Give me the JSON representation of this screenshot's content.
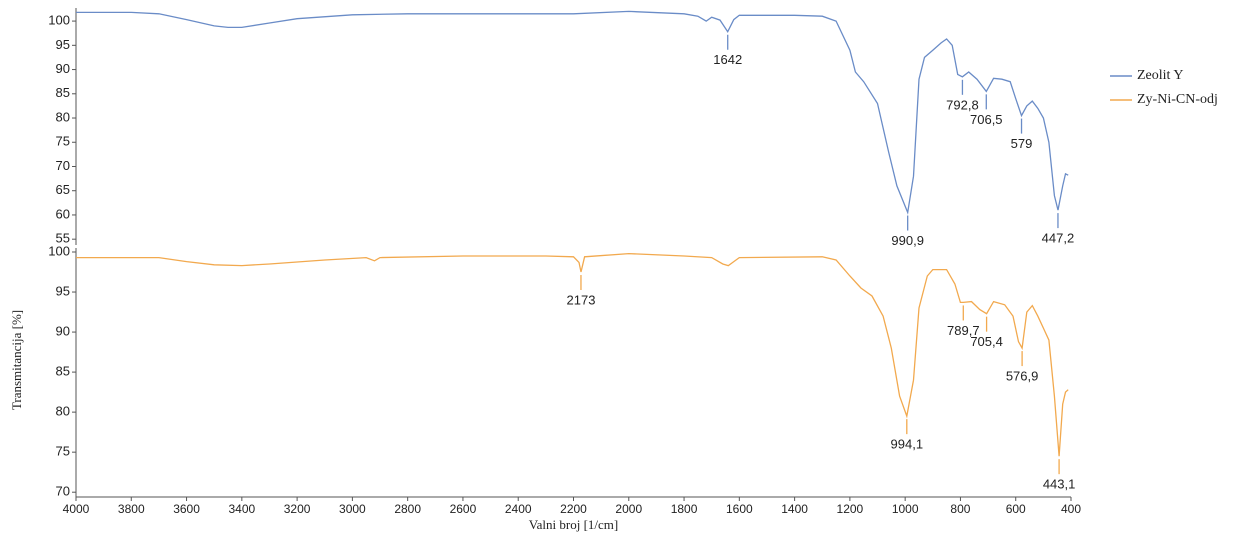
{
  "chart_data": [
    {
      "type": "line",
      "x": [
        4000,
        3800,
        3700,
        3600,
        3500,
        3450,
        3400,
        3300,
        3200,
        3000,
        2800,
        2400,
        2200,
        2000,
        1800,
        1750,
        1720,
        1700,
        1670,
        1642,
        1620,
        1600,
        1400,
        1300,
        1250,
        1200,
        1180,
        1150,
        1100,
        1060,
        1030,
        990.9,
        970,
        950,
        930,
        900,
        870,
        850,
        830,
        810,
        792.8,
        770,
        740,
        706.5,
        680,
        650,
        620,
        600,
        579,
        560,
        540,
        520,
        500,
        480,
        460,
        447.2,
        430,
        420,
        410
      ],
      "series": [
        {
          "name": "Zeolit Y",
          "color": "#6a8cc7",
          "values": [
            101.8,
            101.8,
            101.5,
            100.3,
            99.0,
            98.7,
            98.7,
            99.6,
            100.5,
            101.3,
            101.5,
            101.5,
            101.5,
            102.0,
            101.5,
            101.0,
            100.0,
            100.8,
            100.2,
            97.8,
            100.3,
            101.2,
            101.2,
            101.0,
            100.0,
            94.0,
            89.5,
            87.5,
            83.0,
            73.0,
            66.0,
            60.5,
            68.0,
            88.0,
            92.5,
            94.0,
            95.5,
            96.3,
            95.0,
            89.0,
            88.5,
            89.5,
            88.0,
            85.5,
            88.2,
            88.0,
            87.5,
            84.0,
            80.5,
            82.5,
            83.5,
            82.0,
            80.0,
            75.0,
            64.0,
            61.0,
            66.0,
            68.5,
            68.2
          ]
        }
      ],
      "xlim": [
        4000,
        400
      ],
      "ylim": [
        53.8,
        102.7
      ],
      "yticks": [
        55,
        60,
        65,
        70,
        75,
        80,
        85,
        90,
        95,
        100
      ],
      "annotations": [
        {
          "x": 1642,
          "y": 97.8,
          "text": "1642"
        },
        {
          "x": 990.9,
          "y": 60.5,
          "text": "990,9"
        },
        {
          "x": 792.8,
          "y": 88.5,
          "text": "792,8"
        },
        {
          "x": 706.5,
          "y": 85.5,
          "text": "706,5"
        },
        {
          "x": 579,
          "y": 80.5,
          "text": "579"
        },
        {
          "x": 447.2,
          "y": 61.0,
          "text": "447,2"
        }
      ]
    },
    {
      "type": "line",
      "x": [
        4000,
        3700,
        3600,
        3500,
        3400,
        3300,
        3100,
        2950,
        2920,
        2900,
        2600,
        2300,
        2200,
        2180,
        2173,
        2160,
        2000,
        1800,
        1700,
        1660,
        1640,
        1620,
        1600,
        1300,
        1250,
        1200,
        1160,
        1120,
        1080,
        1050,
        1020,
        994.1,
        970,
        950,
        920,
        900,
        850,
        820,
        800,
        789.7,
        760,
        730,
        705.4,
        680,
        640,
        610,
        590,
        576.9,
        560,
        540,
        520,
        500,
        480,
        460,
        443.1,
        430,
        420,
        410
      ],
      "series": [
        {
          "name": "Zy-Ni-CN-odj",
          "color": "#f2a94e",
          "values": [
            99.3,
            99.3,
            98.8,
            98.4,
            98.3,
            98.5,
            99.0,
            99.3,
            98.9,
            99.3,
            99.5,
            99.5,
            99.4,
            98.7,
            97.5,
            99.4,
            99.8,
            99.5,
            99.3,
            98.5,
            98.3,
            98.8,
            99.3,
            99.4,
            99.0,
            97.0,
            95.5,
            94.5,
            92.0,
            88.0,
            82.0,
            79.5,
            84.0,
            93.0,
            97.0,
            97.8,
            97.8,
            96.0,
            93.7,
            93.7,
            93.8,
            92.8,
            92.3,
            93.8,
            93.4,
            92.0,
            88.8,
            88.0,
            92.5,
            93.3,
            92.0,
            90.5,
            89.0,
            82.0,
            74.5,
            81.0,
            82.5,
            82.8
          ]
        }
      ],
      "xlim": [
        4000,
        400
      ],
      "xticks": [
        4000,
        3800,
        3600,
        3400,
        3200,
        3000,
        2800,
        2600,
        2400,
        2200,
        2000,
        1800,
        1600,
        1400,
        1200,
        1000,
        800,
        600,
        400
      ],
      "ylim": [
        69.4,
        100.5
      ],
      "yticks": [
        70,
        75,
        80,
        85,
        90,
        95,
        100
      ],
      "xlabel": "Valni broj [1/cm]",
      "ylabel": "Transmitancija [%]",
      "annotations": [
        {
          "x": 2173,
          "y": 97.5,
          "text": "2173"
        },
        {
          "x": 994.1,
          "y": 79.5,
          "text": "994,1"
        },
        {
          "x": 789.7,
          "y": 93.7,
          "text": "789,7"
        },
        {
          "x": 705.4,
          "y": 92.3,
          "text": "705,4"
        },
        {
          "x": 576.9,
          "y": 88.0,
          "text": "576,9"
        },
        {
          "x": 443.1,
          "y": 74.5,
          "text": "443,1"
        }
      ]
    }
  ]
}
